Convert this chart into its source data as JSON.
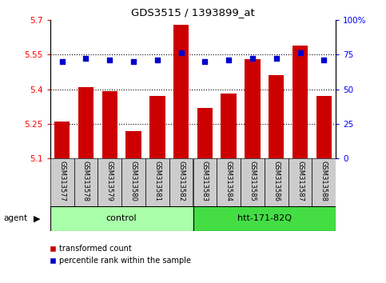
{
  "title": "GDS3515 / 1393899_at",
  "categories": [
    "GSM313577",
    "GSM313578",
    "GSM313579",
    "GSM313580",
    "GSM313581",
    "GSM313582",
    "GSM313583",
    "GSM313584",
    "GSM313585",
    "GSM313586",
    "GSM313587",
    "GSM313588"
  ],
  "bar_values": [
    5.26,
    5.41,
    5.39,
    5.22,
    5.37,
    5.68,
    5.32,
    5.38,
    5.53,
    5.46,
    5.59,
    5.37
  ],
  "percentile_values": [
    70,
    72,
    71,
    70,
    71,
    76,
    70,
    71,
    72,
    72,
    76,
    71
  ],
  "ylim_left": [
    5.1,
    5.7
  ],
  "ylim_right": [
    0,
    100
  ],
  "yticks_left": [
    5.1,
    5.25,
    5.4,
    5.55,
    5.7
  ],
  "ytick_labels_left": [
    "5.1",
    "5.25",
    "5.4",
    "5.55",
    "5.7"
  ],
  "yticks_right": [
    0,
    25,
    50,
    75,
    100
  ],
  "ytick_labels_right": [
    "0",
    "25",
    "50",
    "75",
    "100%"
  ],
  "bar_color": "#cc0000",
  "percentile_color": "#0000cc",
  "bar_bottom": 5.1,
  "groups": [
    {
      "label": "control",
      "start": 0,
      "end": 6,
      "color": "#aaffaa"
    },
    {
      "label": "htt-171-82Q",
      "start": 6,
      "end": 12,
      "color": "#44dd44"
    }
  ],
  "agent_label": "agent",
  "xlabel_area_color": "#cccccc",
  "background_color": "white"
}
